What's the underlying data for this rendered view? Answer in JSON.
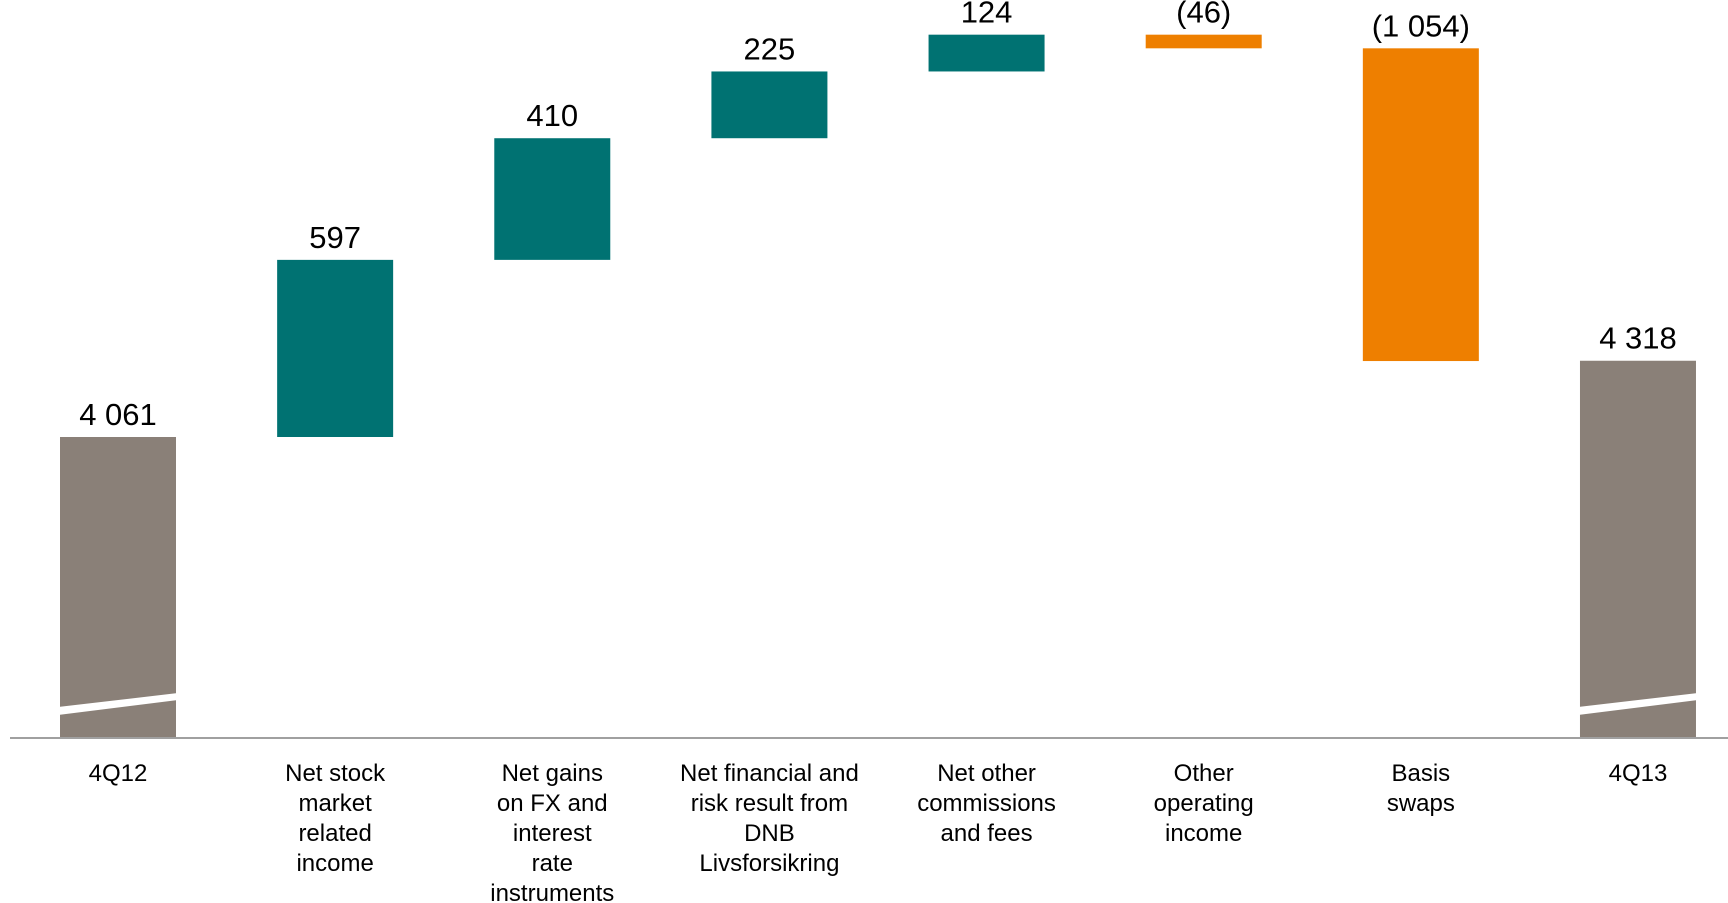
{
  "chart_data": {
    "type": "waterfall",
    "categories": [
      [
        "4Q12"
      ],
      [
        "Net stock",
        "market",
        "related",
        "income"
      ],
      [
        "Net gains",
        "on FX and",
        "interest",
        "rate",
        "instruments"
      ],
      [
        "Net financial and",
        "risk result from",
        "DNB",
        "Livsforsikring"
      ],
      [
        "Net other",
        "commissions",
        "and fees"
      ],
      [
        "Other",
        "operating",
        "income"
      ],
      [
        "Basis",
        "swaps"
      ],
      [
        "4Q13"
      ]
    ],
    "values": [
      4061,
      597,
      410,
      225,
      124,
      -46,
      -1054,
      4318
    ],
    "kinds": [
      "total",
      "delta",
      "delta",
      "delta",
      "delta",
      "delta",
      "delta",
      "total"
    ],
    "value_labels": [
      "4 061",
      "597",
      "410",
      "225",
      "124",
      "(46)",
      "(1 054)",
      "4 318"
    ],
    "axis_break": true,
    "colors": {
      "total": "#8a8078",
      "increase": "#007272",
      "decrease": "#ee7f00",
      "axis": "#a0a0a0"
    }
  }
}
